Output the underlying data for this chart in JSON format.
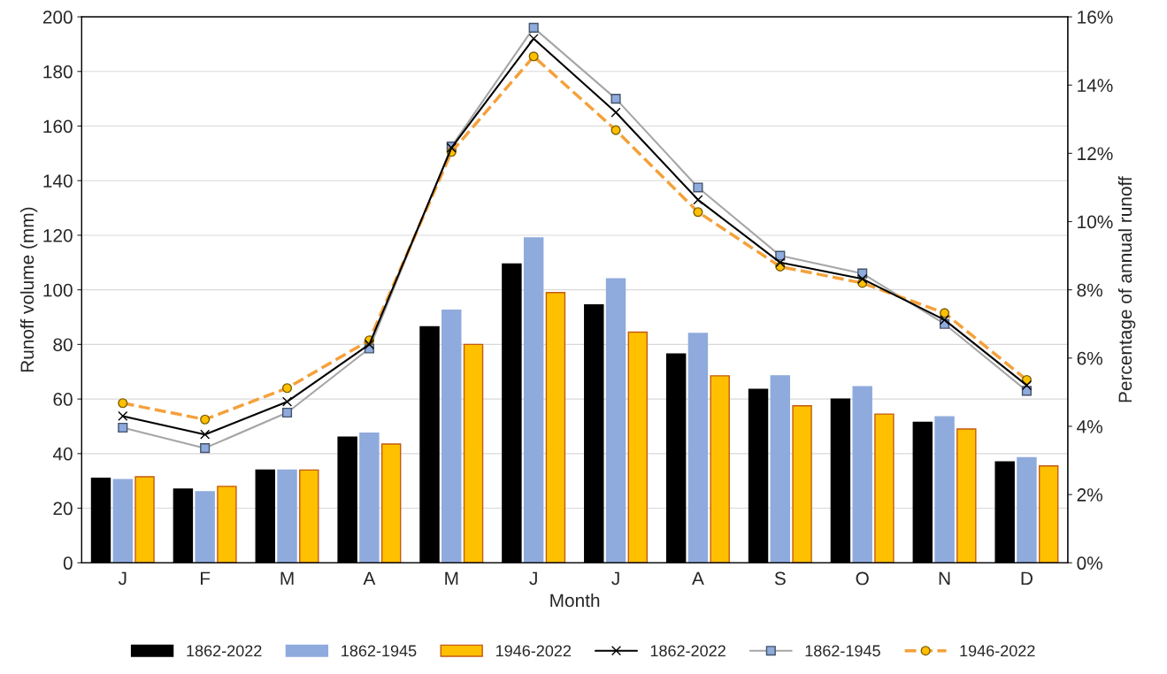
{
  "chart_data": {
    "type": "bar",
    "xlabel": "Month",
    "ylabel": "Runoff volume (mm)",
    "y2label": "Percentage of annual runoff",
    "categories": [
      "J",
      "F",
      "M",
      "A",
      "M",
      "J",
      "J",
      "A",
      "S",
      "O",
      "N",
      "D"
    ],
    "series": [
      {
        "name": "1862-2022",
        "color": "#000000",
        "values": [
          31,
          27,
          34,
          46,
          86.5,
          109.5,
          94.5,
          76.5,
          63.5,
          60,
          51.5,
          37
        ]
      },
      {
        "name": "1862-1945",
        "color": "#8faadc",
        "values": [
          30.5,
          26,
          34,
          47.5,
          92.5,
          119,
          104,
          84,
          68.5,
          64.5,
          53.5,
          38.5
        ]
      },
      {
        "name": "1946-2022",
        "color": "#ffc000",
        "values": [
          31.5,
          28,
          34,
          43.5,
          80,
          99,
          84.5,
          68.5,
          57.5,
          54.5,
          49,
          35.5
        ]
      },
      {
        "name": "1862-2022",
        "type": "line",
        "axis": "y2",
        "color": "#000000",
        "marker": "cross",
        "line_style": "solid",
        "values": [
          4.3,
          3.76,
          4.72,
          6.4,
          12.16,
          15.36,
          13.2,
          10.64,
          8.8,
          8.32,
          7.12,
          5.2
        ]
      },
      {
        "name": "1862-1945",
        "type": "line",
        "axis": "y2",
        "color": "#a6a6a6",
        "marker": "square",
        "line_style": "solid",
        "values": [
          3.96,
          3.36,
          4.4,
          6.28,
          12.2,
          15.68,
          13.6,
          11.0,
          9.0,
          8.48,
          7.0,
          5.04
        ]
      },
      {
        "name": "1946-2022",
        "type": "line",
        "axis": "y2",
        "color": "#f4a13a",
        "marker": "circle",
        "line_style": "dashed",
        "values": [
          4.68,
          4.2,
          5.12,
          6.52,
          12.04,
          14.84,
          12.68,
          10.28,
          8.68,
          8.2,
          7.32,
          5.36
        ]
      }
    ],
    "ylim": [
      0,
      200
    ],
    "yticks": [
      0,
      20,
      40,
      60,
      80,
      100,
      120,
      140,
      160,
      180,
      200
    ],
    "y2lim": [
      0,
      16
    ],
    "y2ticks": [
      {
        "value": 0,
        "label": "0%"
      },
      {
        "value": 2,
        "label": "2%"
      },
      {
        "value": 4,
        "label": "4%"
      },
      {
        "value": 6,
        "label": "6%"
      },
      {
        "value": 8,
        "label": "8%"
      },
      {
        "value": 10,
        "label": "10%"
      },
      {
        "value": 12,
        "label": "12%"
      },
      {
        "value": 14,
        "label": "14%"
      },
      {
        "value": 16,
        "label": "16%"
      }
    ],
    "grid": "y",
    "legend": "bottom"
  }
}
